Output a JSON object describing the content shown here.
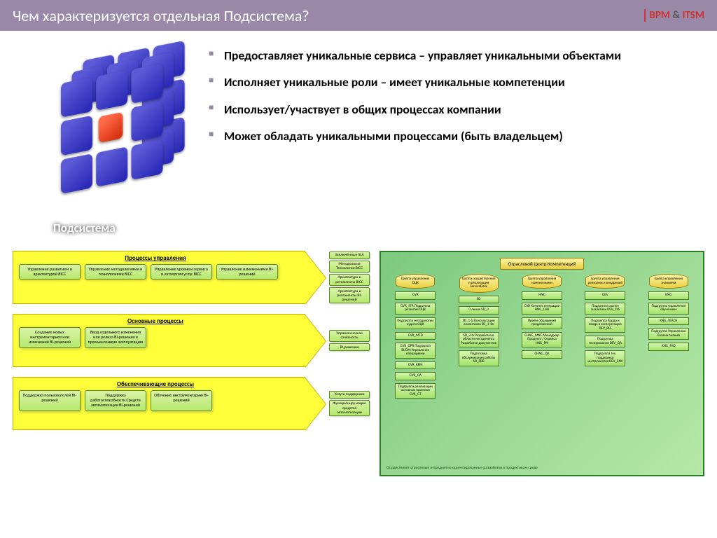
{
  "colors": {
    "header_bg": "#9a88a9",
    "header_text": "#ffffff",
    "accent": "#cc3333",
    "arrow_bg": "#ffff3a",
    "arrow_border": "#bda800",
    "proc_bg_top": "#d9f4a7",
    "proc_bg_bottom": "#b6e86e",
    "proc_border": "#5c8a27",
    "org_bg_top": "#fff4a8",
    "org_bg_bottom": "#e8cf40",
    "org_border": "#9a7a10",
    "right_border": "#2a7e2a",
    "right_bg": "#b6e8a7",
    "cube_blue": "#2a2ab8",
    "cube_red": "#d62f0c"
  },
  "typography": {
    "title_fontsize": 22,
    "bullet_fontsize": 17.5,
    "bullet_weight": 700,
    "lane_title_fontsize": 9,
    "proc_fontsize": 6,
    "org_fontsize": 5
  },
  "header": {
    "title": "Чем характеризуется отдельная Подсистема?",
    "brand_bpm": "BPM",
    "brand_amp": "&",
    "brand_itsm": "ITSM"
  },
  "cube": {
    "label": "Подсистема"
  },
  "bullets": [
    "Предоставляет уникальные сервиса – управляет уникальными объектами",
    "Исполняет уникальные роли – имеет уникальные компетенции",
    "Использует/участвует в общих процессах компании",
    "Может обладать уникальными процессами (быть владельцем)"
  ],
  "left_diagram": {
    "lanes": [
      {
        "title": "Процессы управления",
        "processes": [
          "Управление развитием и архитектурой BICC",
          "Управление методологиями и технологиями BICC",
          "Управление уровнем сервиса и каталогом услуг BICC",
          "Управление изменениями BI-решений"
        ],
        "outputs": [
          "Заключённые SLA",
          "Методология Технологии BICC",
          "Архитектура и регламенты BICC",
          "Архитектура и регламенты BI-решений"
        ]
      },
      {
        "title": "Основные процессы",
        "processes": [
          "Создание новых инструментариев или изменений BI-решений",
          "Ввод отдельного изменения или релиза BI-решения в промышленную эксплуатацию"
        ],
        "outputs": [
          "Управленческая отчётность",
          "BI-решения"
        ]
      },
      {
        "title": "Обеспечивающие процессы",
        "processes": [
          "Поддержка пользователей BI-решений",
          "Поддержка работоспособности Средств автоматизации BI-решений",
          "Обучение инструментарию BI-решений"
        ],
        "outputs": [
          "Услуги поддержки",
          "Функциониру-ющие средства автоматизации"
        ]
      }
    ]
  },
  "right_diagram": {
    "head": "Отраслевой Центр Компетенций",
    "columns": [
      {
        "person": "Группа управления ОЦК",
        "roles": [
          "GVR",
          "GVR_STR Подгруппа развития ОЦК",
          "Подгруппа методологии аудита ОЦК",
          "GVR_MTD",
          "GVR_OPR Подгруппа BI/DM Управление операциями",
          "GVR_KRM",
          "GVR_QA",
          "Подгруппа реализации основных проектов GVR_GT"
        ]
      },
      {
        "person": "Группа осуществления и реализации ServiceDesk",
        "roles": [
          "SD",
          "0 линия SD_0",
          "SD_1-la Консультации аналитиков SD_1-1b",
          "SD_2-la Разработка в области инструмента Разработки документов",
          "Подготовка обслуживания работы SD_PRB"
        ]
      },
      {
        "person": "Группа управления изменениями",
        "roles": [
          "HNG",
          "CAB Комитет генерации HNG_CAB",
          "Приём обращений предложений",
          "CHNG_MNG Менеджер Продукта / Сервиса HNG_PM",
          "CHNG_QA"
        ]
      },
      {
        "person": "Группа управления релизами и внедрений",
        "roles": [
          "DEV",
          "Подгруппа систем аналитики DEV_SYS",
          "Подгруппа Хорда и ввода в эксплуатацию DEV_RLS",
          "Подгруппа тестирования DEV_QA",
          "Подгруппа тех. поддержки инструментов DEV_ENV"
        ]
      },
      {
        "person": "Группа управления знаниями",
        "roles": [
          "KNG",
          "Подгруппа управления обучением",
          "KNG_TEACH",
          "Подгруппа Управления базами знаний",
          "KNG_FAQ"
        ]
      }
    ],
    "footnote": "Осуществляет отраслевые и предметно-ориентированные разработки в продуктовом среде"
  }
}
